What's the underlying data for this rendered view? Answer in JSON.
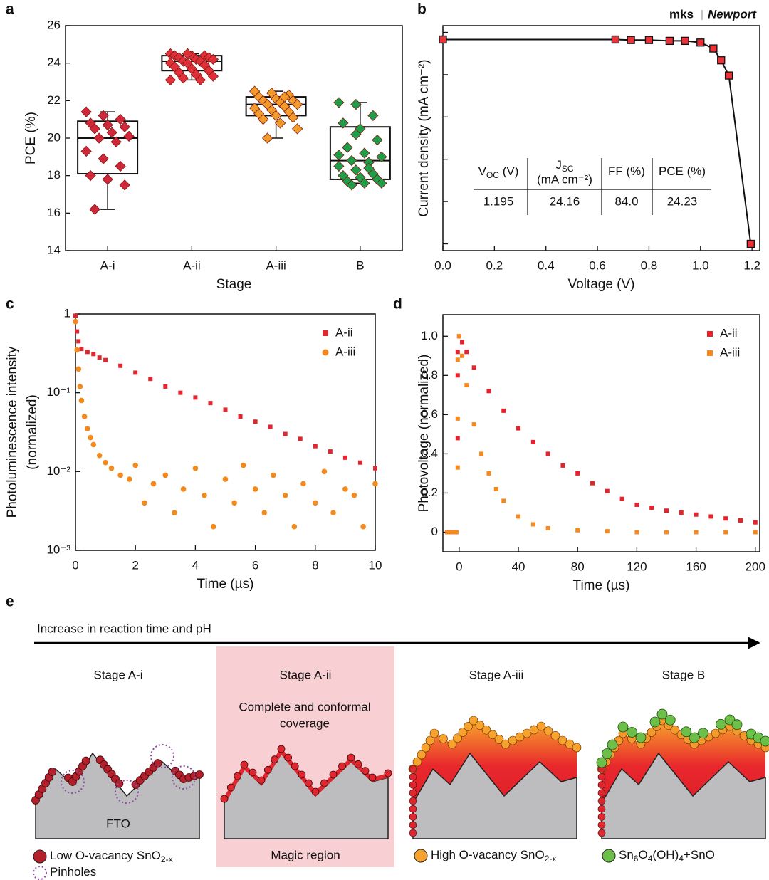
{
  "chart_data": [
    {
      "type": "box",
      "panel": "a",
      "xlabel": "Stage",
      "ylabel": "PCE (%)",
      "categories": [
        "A-i",
        "A-ii",
        "A-iii",
        "B"
      ],
      "colors": [
        "#d0283a",
        "#e0303a",
        "#f39a2c",
        "#1f9e4a"
      ],
      "boxes": [
        {
          "whislo": 16.2,
          "q1": 18.1,
          "med": 20.0,
          "q3": 20.9,
          "whishi": 21.4
        },
        {
          "whislo": 23.1,
          "q1": 23.6,
          "med": 24.1,
          "q3": 24.4,
          "whishi": 24.5
        },
        {
          "whislo": 20.0,
          "q1": 21.2,
          "med": 21.8,
          "q3": 22.2,
          "whishi": 22.5
        },
        {
          "whislo": 17.6,
          "q1": 17.8,
          "med": 18.8,
          "q3": 20.6,
          "whishi": 21.9
        }
      ],
      "points": [
        [
          21.4,
          21.2,
          21.0,
          20.8,
          20.7,
          20.6,
          20.5,
          20.3,
          20.1,
          20.0,
          19.8,
          19.3,
          18.9,
          18.5,
          18.0,
          17.8,
          17.5,
          16.2
        ],
        [
          24.5,
          24.5,
          24.4,
          24.4,
          24.4,
          24.3,
          24.3,
          24.2,
          24.2,
          24.1,
          24.1,
          24.0,
          24.0,
          23.9,
          23.8,
          23.7,
          23.6,
          23.5,
          23.4,
          23.3,
          23.2,
          23.1,
          23.1,
          24.5
        ],
        [
          22.5,
          22.4,
          22.3,
          22.2,
          22.1,
          22.0,
          22.0,
          21.9,
          21.8,
          21.8,
          21.7,
          21.6,
          21.5,
          21.4,
          21.3,
          21.2,
          21.1,
          21.0,
          20.8,
          20.5,
          20.0,
          22.2
        ],
        [
          21.9,
          21.8,
          21.2,
          20.8,
          20.5,
          19.9,
          19.5,
          19.2,
          19.0,
          18.8,
          18.7,
          18.5,
          18.3,
          18.1,
          18.0,
          17.9,
          17.8,
          17.7,
          17.6,
          17.6,
          17.5,
          18.4,
          19.1,
          20.2
        ]
      ],
      "ylim": [
        14,
        26
      ],
      "yticks": [
        14,
        16,
        18,
        20,
        22,
        24,
        26
      ]
    },
    {
      "type": "line",
      "panel": "b",
      "xlabel": "Voltage (V)",
      "ylabel": "Current density (mA cm⁻²)",
      "logo": [
        "mks",
        "Newport"
      ],
      "x": [
        0,
        0.67,
        0.73,
        0.8,
        0.88,
        0.94,
        1.0,
        1.05,
        1.08,
        1.11,
        1.195
      ],
      "values": [
        24.16,
        24.16,
        24.1,
        24.1,
        24.0,
        24.0,
        23.8,
        23.1,
        21.7,
        19.9,
        0
      ],
      "color": "#e8333a",
      "xlim": [
        0,
        1.23
      ],
      "xticks": [
        {
          "value": 0,
          "label": "0.0"
        },
        0.2,
        0.4,
        0.6,
        0.8,
        {
          "value": 1,
          "label": "1.0"
        },
        1.2
      ],
      "ylim": [
        -0.8,
        25.8
      ],
      "yticks": [
        0,
        5,
        10,
        15,
        20,
        25
      ],
      "ytick_labels": false,
      "table": {
        "headers": [
          {
            "parts": [
              "V",
              "OC",
              " (V)"
            ]
          },
          {
            "parts": [
              "J",
              "SC"
            ],
            "unit": "(mA cm⁻²)"
          },
          {
            "parts": [
              "FF (%)"
            ]
          },
          {
            "parts": [
              "PCE (%)"
            ]
          }
        ],
        "row": [
          "1.195",
          "24.16",
          "84.0",
          "24.23"
        ]
      }
    },
    {
      "type": "scatter",
      "panel": "c",
      "xlabel": "Time (µs)",
      "ylabel": [
        "Photoluminescence intensity",
        "(normalized)"
      ],
      "ylog": true,
      "legend": "upper right",
      "series": [
        {
          "name": "A-ii",
          "color": "#e0262f",
          "marker": "square",
          "x": [
            0,
            0.05,
            0.1,
            0.2,
            0.4,
            0.6,
            0.8,
            1,
            1.5,
            2,
            2.5,
            3,
            3.5,
            4,
            4.5,
            5,
            5.5,
            6,
            6.5,
            7,
            7.5,
            8,
            8.5,
            9,
            9.5,
            10
          ],
          "values": [
            0.95,
            0.6,
            0.45,
            0.36,
            0.33,
            0.31,
            0.28,
            0.26,
            0.22,
            0.18,
            0.15,
            0.12,
            0.1,
            0.087,
            0.074,
            0.061,
            0.05,
            0.043,
            0.037,
            0.03,
            0.026,
            0.021,
            0.018,
            0.015,
            0.013,
            0.011
          ]
        },
        {
          "name": "A-iii",
          "color": "#f28a1e",
          "marker": "circle",
          "x": [
            0,
            0.05,
            0.1,
            0.15,
            0.2,
            0.3,
            0.4,
            0.5,
            0.6,
            0.8,
            1,
            1.2,
            1.5,
            1.8,
            2,
            2.3,
            2.6,
            3,
            3.3,
            3.6,
            4,
            4.3,
            4.6,
            5,
            5.3,
            5.6,
            6,
            6.3,
            6.6,
            7,
            7.3,
            7.6,
            8,
            8.3,
            8.6,
            9,
            9.3,
            9.6,
            10
          ],
          "values": [
            0.8,
            0.35,
            0.2,
            0.12,
            0.08,
            0.05,
            0.035,
            0.027,
            0.022,
            0.016,
            0.013,
            0.011,
            0.009,
            0.008,
            0.012,
            0.004,
            0.007,
            0.009,
            0.003,
            0.006,
            0.011,
            0.005,
            0.002,
            0.008,
            0.004,
            0.012,
            0.006,
            0.003,
            0.009,
            0.005,
            0.002,
            0.007,
            0.004,
            0.01,
            0.003,
            0.006,
            0.005,
            0.002,
            0.007
          ]
        }
      ],
      "xlim": [
        0,
        10
      ],
      "xticks": [
        0,
        2,
        4,
        6,
        8,
        10
      ],
      "ylim": [
        0.001,
        1
      ],
      "yticks": [
        {
          "value": 0.001,
          "label": "10⁻³"
        },
        {
          "value": 0.01,
          "label": "10⁻²"
        },
        {
          "value": 0.1,
          "label": "10⁻¹"
        },
        1
      ]
    },
    {
      "type": "scatter",
      "panel": "d",
      "xlabel": "Time (µs)",
      "ylabel": "Photovoltage (normalized)",
      "legend": "upper right",
      "series": [
        {
          "name": "A-ii",
          "color": "#e8222c",
          "marker": "square",
          "x": [
            -8,
            -6,
            -4,
            -2,
            -1,
            -1,
            -1,
            0,
            2,
            5,
            10,
            20,
            30,
            40,
            50,
            60,
            70,
            80,
            90,
            100,
            110,
            120,
            130,
            140,
            150,
            160,
            170,
            180,
            190,
            200
          ],
          "values": [
            0,
            0,
            0,
            0,
            0.48,
            0.8,
            0.92,
            1,
            0.97,
            0.92,
            0.84,
            0.72,
            0.62,
            0.53,
            0.46,
            0.4,
            0.34,
            0.3,
            0.25,
            0.21,
            0.17,
            0.14,
            0.125,
            0.11,
            0.1,
            0.09,
            0.08,
            0.07,
            0.06,
            0.05
          ]
        },
        {
          "name": "A-iii",
          "color": "#f5891f",
          "marker": "square",
          "x": [
            -8,
            -6,
            -4,
            -2,
            -1,
            -1,
            -1,
            0,
            2,
            5,
            10,
            15,
            20,
            25,
            30,
            40,
            50,
            60,
            80,
            100,
            120,
            140,
            160,
            180,
            200
          ],
          "values": [
            0,
            0,
            0,
            0,
            0.33,
            0.58,
            0.88,
            1,
            0.9,
            0.75,
            0.55,
            0.4,
            0.3,
            0.22,
            0.16,
            0.08,
            0.04,
            0.02,
            0.01,
            0.005,
            0,
            0,
            0,
            0,
            0
          ]
        }
      ],
      "xlim": [
        -11,
        203
      ],
      "xticks": [
        0,
        40,
        80,
        120,
        160,
        200
      ],
      "ylim": [
        -0.1,
        1.11
      ],
      "yticks": [
        0,
        0.2,
        0.4,
        0.6,
        0.8,
        {
          "value": 1,
          "label": "1.0"
        }
      ]
    }
  ],
  "diagram": {
    "panel": "e",
    "arrow_label": "Increase in reaction time and pH",
    "stages": [
      {
        "title": "Stage A-i",
        "color": "#e03a44"
      },
      {
        "title": "Stage A-ii",
        "color": "#e03a44"
      },
      {
        "title": "Stage A-iii",
        "color": "#f39a2c"
      },
      {
        "title": "Stage B",
        "color": "#6cbf3f"
      }
    ],
    "coverage_note": [
      "Complete and conformal",
      "coverage"
    ],
    "substrate": "FTO",
    "highlight": "Magic region",
    "legend": [
      {
        "parts": [
          "Low O-vacancy SnO",
          "2-x"
        ]
      },
      {
        "parts": [
          "Pinholes"
        ]
      },
      {
        "parts": [
          "High O-vacancy SnO",
          "2-x"
        ]
      },
      {
        "parts": [
          "Sn",
          "6",
          "O",
          "4",
          "(OH)",
          "4",
          "+SnO"
        ]
      }
    ]
  }
}
